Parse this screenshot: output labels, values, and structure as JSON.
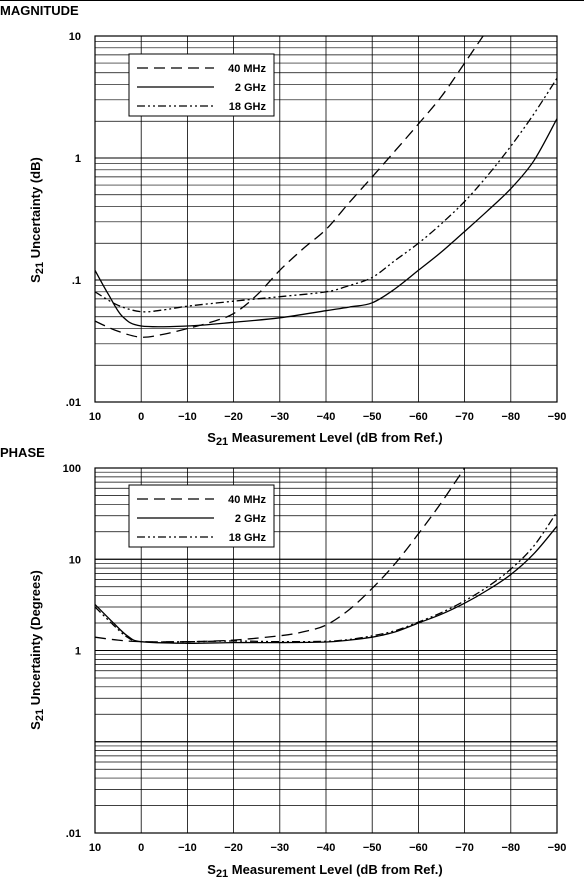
{
  "chart_data": [
    {
      "type": "line",
      "title": "MAGNITUDE",
      "xlabel": "S21 Measurement Level (dB from Ref.)",
      "ylabel": "S21 Uncertainty (dB)",
      "y_scale": "log",
      "xlim": [
        10,
        -90
      ],
      "ylim": [
        0.01,
        10
      ],
      "x_ticks": [
        10,
        0,
        -10,
        -20,
        -30,
        -40,
        -50,
        -60,
        -70,
        -80,
        -90
      ],
      "x_tick_labels": [
        "10",
        "0",
        "−10",
        "−20",
        "−30",
        "−40",
        "−50",
        "−60",
        "−70",
        "−80",
        "−90"
      ],
      "y_ticks": [
        0.01,
        0.1,
        1,
        10
      ],
      "y_tick_labels": [
        ".01",
        ".1",
        "1",
        "10"
      ],
      "grid": true,
      "legend": "top-left",
      "series": [
        {
          "name": "40 MHz",
          "style": "dashed",
          "points": [
            [
              10,
              0.046
            ],
            [
              5,
              0.038
            ],
            [
              0,
              0.034
            ],
            [
              -5,
              0.036
            ],
            [
              -10,
              0.04
            ],
            [
              -15,
              0.045
            ],
            [
              -20,
              0.053
            ],
            [
              -25,
              0.075
            ],
            [
              -30,
              0.12
            ],
            [
              -35,
              0.18
            ],
            [
              -40,
              0.26
            ],
            [
              -45,
              0.43
            ],
            [
              -50,
              0.7
            ],
            [
              -55,
              1.15
            ],
            [
              -60,
              1.9
            ],
            [
              -65,
              3.2
            ],
            [
              -70,
              6.0
            ],
            [
              -74,
              10
            ]
          ]
        },
        {
          "name": "2 GHz",
          "style": "solid",
          "points": [
            [
              10,
              0.12
            ],
            [
              7,
              0.075
            ],
            [
              4,
              0.05
            ],
            [
              0,
              0.042
            ],
            [
              -10,
              0.042
            ],
            [
              -20,
              0.045
            ],
            [
              -30,
              0.049
            ],
            [
              -40,
              0.056
            ],
            [
              -45,
              0.06
            ],
            [
              -50,
              0.065
            ],
            [
              -55,
              0.085
            ],
            [
              -60,
              0.12
            ],
            [
              -65,
              0.17
            ],
            [
              -70,
              0.25
            ],
            [
              -75,
              0.37
            ],
            [
              -80,
              0.56
            ],
            [
              -85,
              0.95
            ],
            [
              -90,
              2.1
            ]
          ]
        },
        {
          "name": "18 GHz",
          "style": "dash-dot-dot",
          "points": [
            [
              10,
              0.08
            ],
            [
              5,
              0.062
            ],
            [
              0,
              0.055
            ],
            [
              -5,
              0.057
            ],
            [
              -10,
              0.061
            ],
            [
              -20,
              0.067
            ],
            [
              -30,
              0.073
            ],
            [
              -40,
              0.08
            ],
            [
              -45,
              0.09
            ],
            [
              -50,
              0.105
            ],
            [
              -55,
              0.145
            ],
            [
              -60,
              0.2
            ],
            [
              -65,
              0.29
            ],
            [
              -70,
              0.44
            ],
            [
              -75,
              0.72
            ],
            [
              -80,
              1.25
            ],
            [
              -85,
              2.3
            ],
            [
              -90,
              4.5
            ]
          ]
        }
      ]
    },
    {
      "type": "line",
      "title": "PHASE",
      "xlabel": "S21 Measurement Level (dB from Ref.)",
      "ylabel": "S21 Uncertainty (Degrees)",
      "y_scale": "log",
      "xlim": [
        10,
        -90
      ],
      "ylim": [
        0.01,
        100
      ],
      "x_ticks": [
        10,
        0,
        -10,
        -20,
        -30,
        -40,
        -50,
        -60,
        -70,
        -80,
        -90
      ],
      "x_tick_labels": [
        "10",
        "0",
        "−10",
        "−20",
        "−30",
        "−40",
        "−50",
        "−60",
        "−70",
        "−80",
        "−90"
      ],
      "y_ticks": [
        0.01,
        1,
        10,
        100
      ],
      "y_tick_labels": [
        ".01",
        "1",
        "10",
        "100"
      ],
      "grid": true,
      "legend": "top-left",
      "series": [
        {
          "name": "40 MHz",
          "style": "dashed",
          "points": [
            [
              10,
              1.4
            ],
            [
              5,
              1.3
            ],
            [
              0,
              1.25
            ],
            [
              -10,
              1.25
            ],
            [
              -20,
              1.3
            ],
            [
              -30,
              1.45
            ],
            [
              -35,
              1.6
            ],
            [
              -40,
              1.9
            ],
            [
              -45,
              2.8
            ],
            [
              -50,
              4.8
            ],
            [
              -55,
              9.0
            ],
            [
              -60,
              19
            ],
            [
              -65,
              42
            ],
            [
              -70,
              100
            ]
          ]
        },
        {
          "name": "2 GHz",
          "style": "solid",
          "points": [
            [
              10,
              3.2
            ],
            [
              6,
              2.0
            ],
            [
              3,
              1.45
            ],
            [
              0,
              1.25
            ],
            [
              -10,
              1.2
            ],
            [
              -20,
              1.22
            ],
            [
              -30,
              1.22
            ],
            [
              -40,
              1.24
            ],
            [
              -45,
              1.3
            ],
            [
              -50,
              1.4
            ],
            [
              -55,
              1.6
            ],
            [
              -60,
              2.0
            ],
            [
              -65,
              2.5
            ],
            [
              -70,
              3.3
            ],
            [
              -75,
              4.6
            ],
            [
              -80,
              6.8
            ],
            [
              -85,
              11.5
            ],
            [
              -90,
              23
            ]
          ]
        },
        {
          "name": "18 GHz",
          "style": "dash-dot-dot",
          "points": [
            [
              10,
              3.0
            ],
            [
              6,
              1.9
            ],
            [
              3,
              1.4
            ],
            [
              0,
              1.25
            ],
            [
              -10,
              1.25
            ],
            [
              -20,
              1.27
            ],
            [
              -30,
              1.25
            ],
            [
              -40,
              1.26
            ],
            [
              -45,
              1.32
            ],
            [
              -50,
              1.45
            ],
            [
              -55,
              1.65
            ],
            [
              -60,
              2.05
            ],
            [
              -65,
              2.6
            ],
            [
              -70,
              3.5
            ],
            [
              -75,
              5.0
            ],
            [
              -80,
              7.8
            ],
            [
              -85,
              14
            ],
            [
              -90,
              33
            ]
          ]
        }
      ]
    }
  ]
}
